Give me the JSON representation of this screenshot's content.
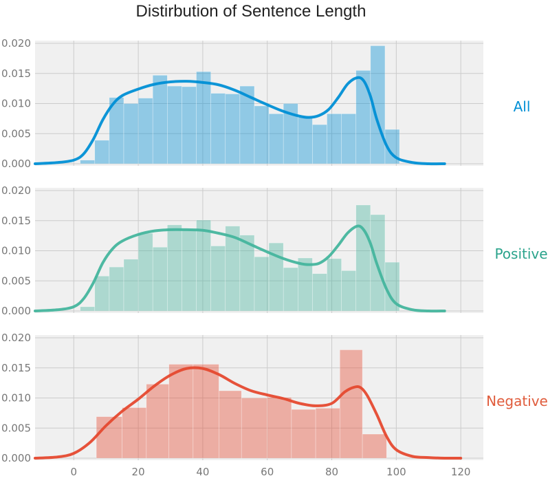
{
  "title": "Distirbution of Sentence Length",
  "chart_data": {
    "type": "histogram+kde",
    "title": "Distirbution of Sentence Length",
    "xlabel": "",
    "ylabel": "",
    "xlim": [
      -12,
      127
    ],
    "ylim": [
      0,
      0.021
    ],
    "x_ticks": [
      0,
      20,
      40,
      60,
      80,
      100,
      120
    ],
    "y_ticks": [
      0.0,
      0.005,
      0.01,
      0.015,
      0.02
    ],
    "y_tick_labels": [
      "0.000",
      "0.005",
      "0.010",
      "0.015",
      "0.020"
    ],
    "x_tick_labels": [
      "0",
      "20",
      "40",
      "60",
      "80",
      "100",
      "120"
    ],
    "grid": true,
    "shared_x_axis": true,
    "panels": [
      {
        "name": "All",
        "color": "#008fd5",
        "bin_edges": [
          2,
          6.5,
          11,
          15.5,
          20,
          24.5,
          29,
          33.5,
          38,
          42.5,
          47,
          51.5,
          56,
          60.5,
          65,
          69.5,
          74,
          78.5,
          83,
          87.5,
          92,
          96.5,
          101
        ],
        "counts": [
          0.0006,
          0.0039,
          0.011,
          0.01,
          0.0109,
          0.0147,
          0.0129,
          0.0128,
          0.0153,
          0.0117,
          0.0116,
          0.0129,
          0.0096,
          0.0083,
          0.01,
          0.0077,
          0.0065,
          0.0083,
          0.0083,
          0.0155,
          0.0196,
          0.0057,
          0.001
        ],
        "kde_x": [
          -12,
          -5,
          0,
          3,
          6,
          9,
          12,
          15,
          20,
          25,
          30,
          35,
          40,
          45,
          50,
          55,
          60,
          65,
          70,
          73,
          76,
          79,
          82,
          85,
          88,
          90,
          92,
          94,
          97,
          100,
          105,
          110,
          115
        ],
        "kde_y": [
          0.0,
          0.0002,
          0.0006,
          0.0016,
          0.004,
          0.0073,
          0.0098,
          0.0113,
          0.0124,
          0.0132,
          0.0136,
          0.0137,
          0.0135,
          0.0131,
          0.0122,
          0.011,
          0.0098,
          0.0087,
          0.0079,
          0.0077,
          0.008,
          0.009,
          0.011,
          0.0133,
          0.0143,
          0.0137,
          0.0112,
          0.0073,
          0.003,
          0.001,
          0.0002,
          0.0,
          0.0
        ]
      },
      {
        "name": "Positive",
        "color": "#45b59d",
        "bin_edges": [
          2,
          6.5,
          11,
          15.5,
          20,
          24.5,
          29,
          33.5,
          38,
          42.5,
          47,
          51.5,
          56,
          60.5,
          65,
          69.5,
          74,
          78.5,
          83,
          87.5,
          92,
          96.5,
          101
        ],
        "counts": [
          0.0007,
          0.0058,
          0.0073,
          0.0086,
          0.0129,
          0.0106,
          0.0143,
          0.0135,
          0.0151,
          0.0108,
          0.0141,
          0.0126,
          0.009,
          0.0113,
          0.0072,
          0.0088,
          0.0062,
          0.0087,
          0.0067,
          0.0176,
          0.016,
          0.0081,
          0.0008
        ],
        "kde_x": [
          -12,
          -5,
          0,
          3,
          6,
          9,
          12,
          15,
          20,
          25,
          30,
          35,
          40,
          45,
          50,
          55,
          60,
          65,
          70,
          73,
          76,
          79,
          82,
          85,
          88,
          90,
          92,
          94,
          97,
          100,
          105,
          110,
          115
        ],
        "kde_y": [
          0.0,
          0.0002,
          0.0007,
          0.002,
          0.0046,
          0.008,
          0.0103,
          0.0116,
          0.0127,
          0.0133,
          0.0135,
          0.0135,
          0.0134,
          0.0129,
          0.0122,
          0.011,
          0.0098,
          0.0087,
          0.0079,
          0.0077,
          0.0079,
          0.009,
          0.0109,
          0.013,
          0.0141,
          0.0134,
          0.0112,
          0.0078,
          0.0036,
          0.0012,
          0.0002,
          0.0,
          0.0
        ]
      },
      {
        "name": "Negative",
        "color": "#e5492f",
        "bin_edges": [
          7,
          15,
          22.5,
          29.5,
          37,
          45,
          52,
          60,
          67.5,
          75,
          82.5,
          89.5,
          97,
          101
        ],
        "counts": [
          0.0069,
          0.0084,
          0.0123,
          0.0156,
          0.0156,
          0.0112,
          0.01,
          0.0101,
          0.0081,
          0.0083,
          0.018,
          0.004,
          0.0
        ],
        "kde_x": [
          -12,
          -5,
          0,
          5,
          10,
          15,
          20,
          25,
          30,
          35,
          40,
          45,
          50,
          55,
          60,
          65,
          70,
          75,
          80,
          84,
          87,
          89,
          91,
          94,
          97,
          100,
          105,
          110,
          115,
          120
        ],
        "kde_y": [
          0.0,
          0.0002,
          0.0008,
          0.0026,
          0.0054,
          0.0078,
          0.0098,
          0.012,
          0.0138,
          0.0149,
          0.0149,
          0.0139,
          0.0124,
          0.0112,
          0.0105,
          0.0099,
          0.0091,
          0.0087,
          0.0091,
          0.011,
          0.0118,
          0.0117,
          0.0104,
          0.0072,
          0.0036,
          0.0014,
          0.0003,
          0.0001,
          0.0,
          0.0
        ]
      }
    ]
  }
}
